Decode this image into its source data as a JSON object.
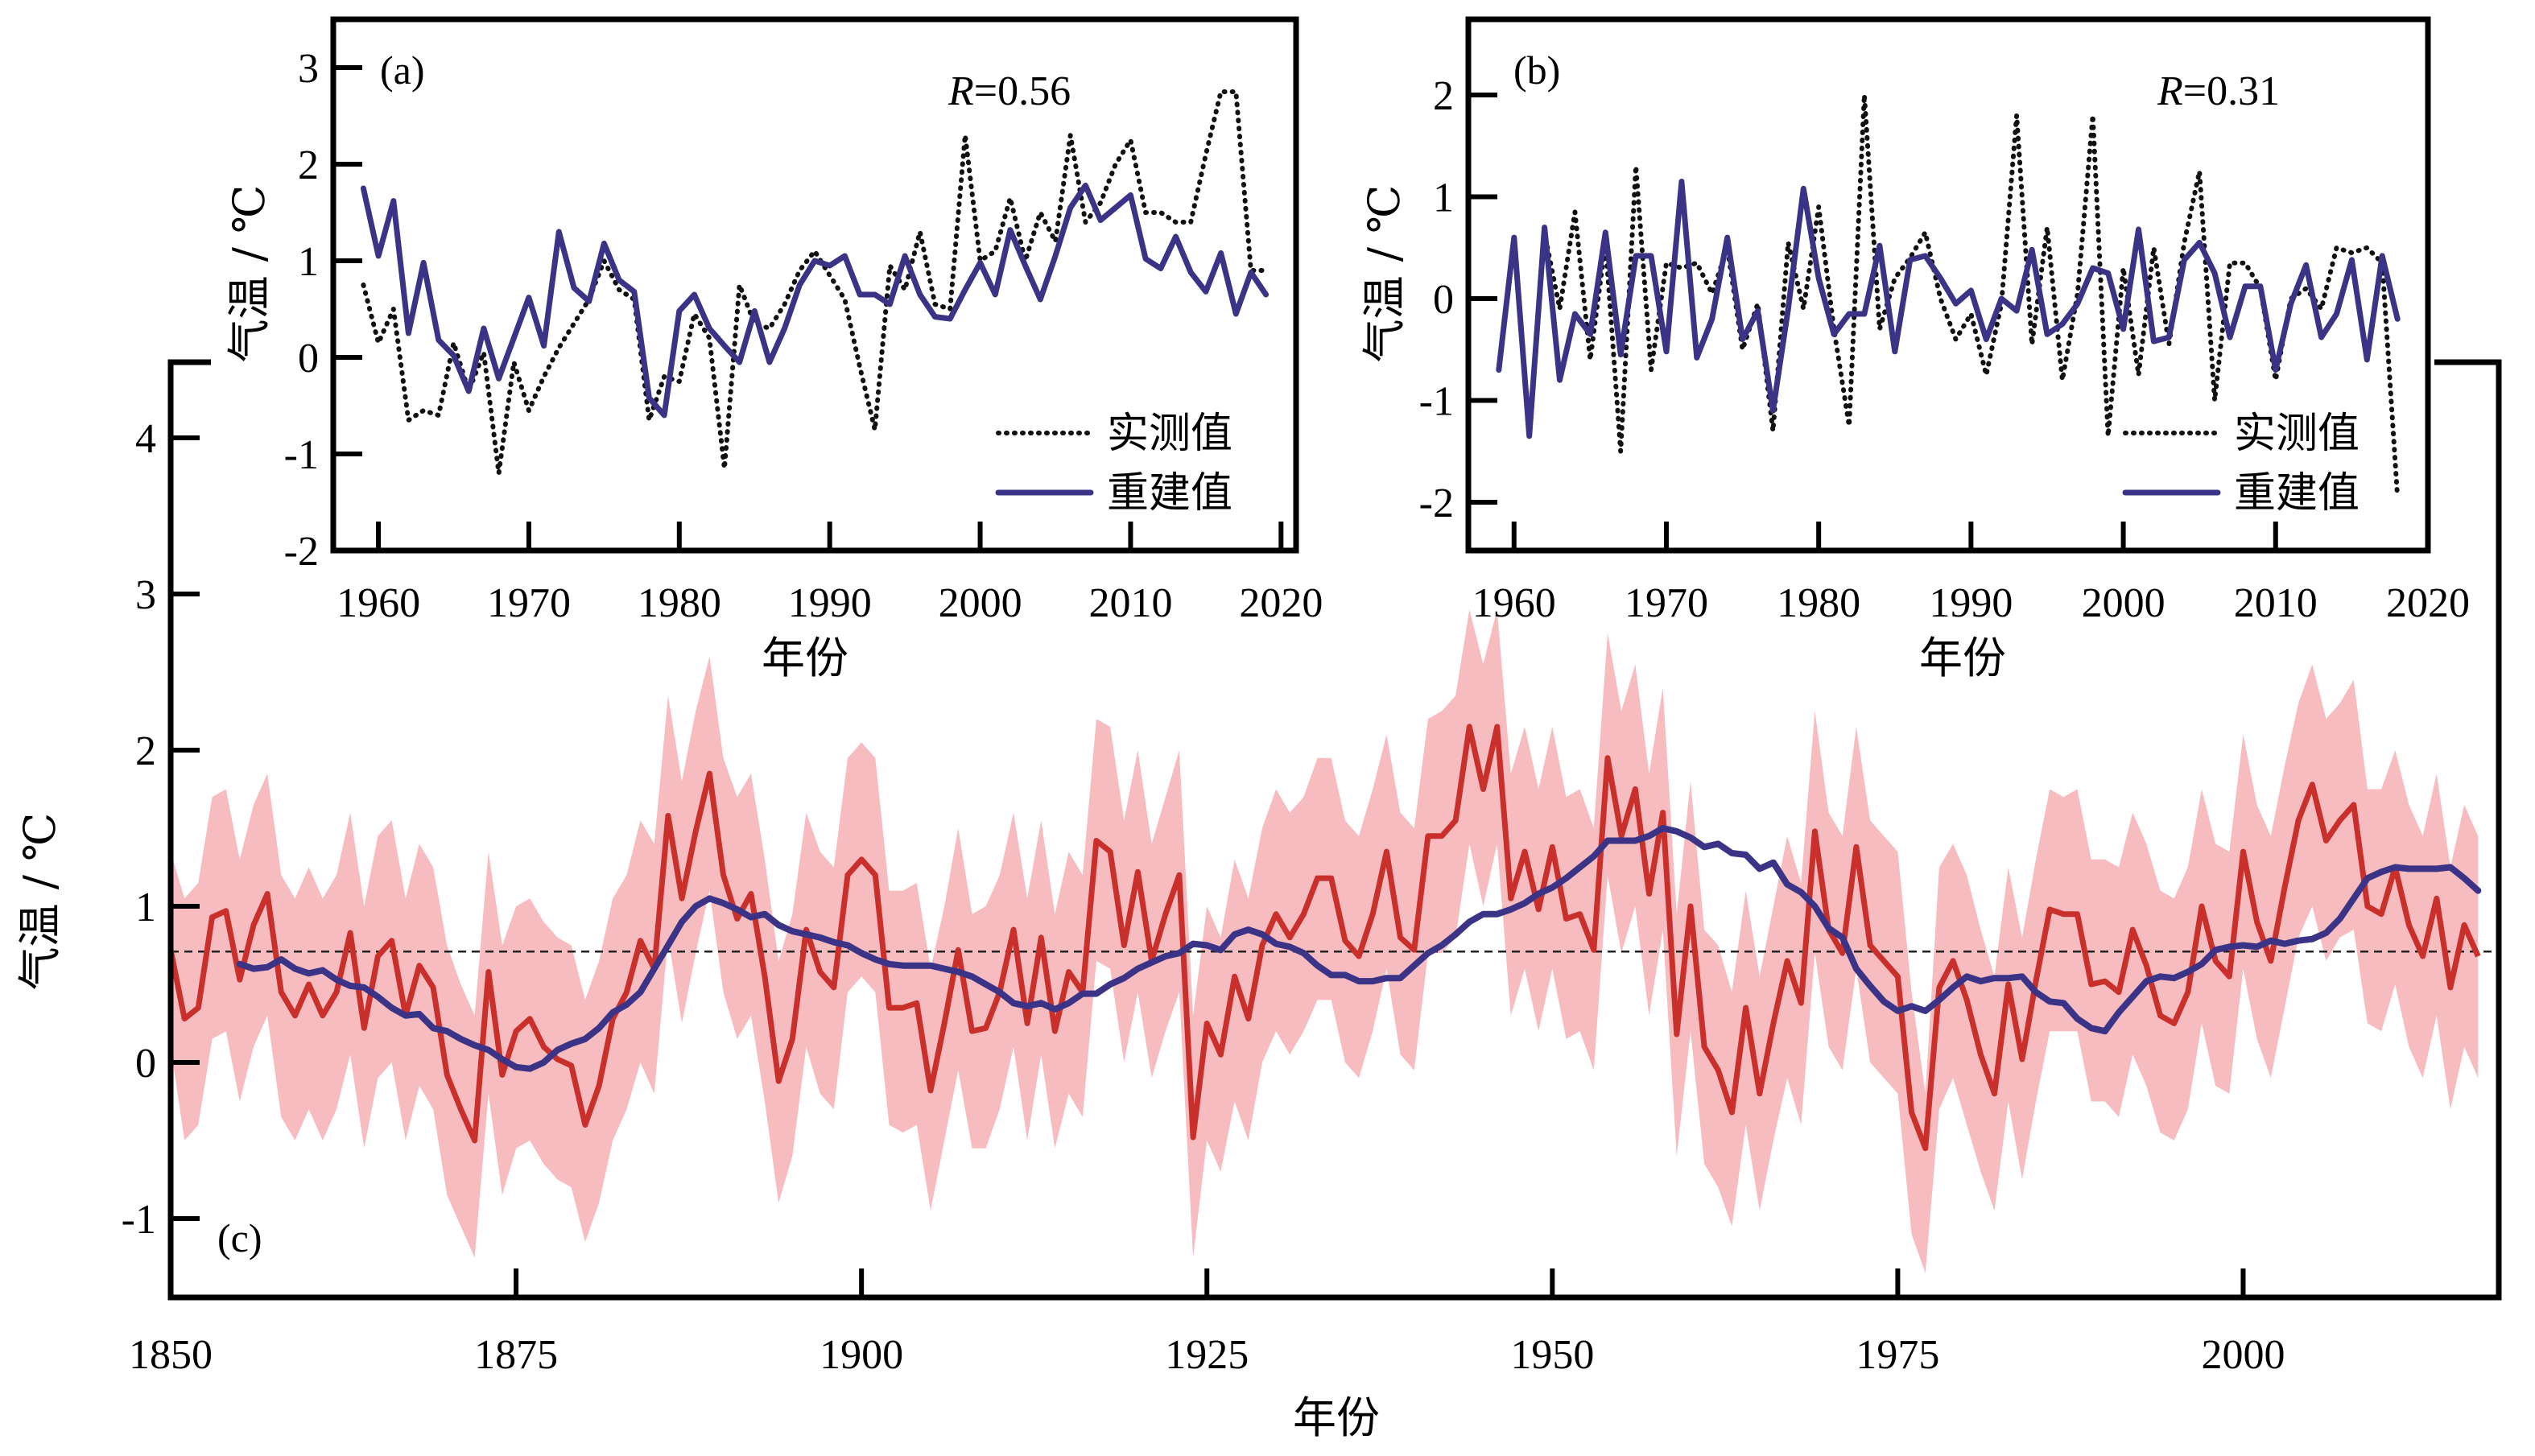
{
  "colors": {
    "observed": "#111111",
    "reconstructed_ab": "#3b3486",
    "reconstruction_c": "#c9302c",
    "uncertainty_band": "#f7bcc0",
    "smoothed_c": "#3b3486"
  },
  "chart_data": [
    {
      "id": "a",
      "type": "line",
      "panel_label": "(a)",
      "annotation": "R=0.56",
      "annotation_italic": "R",
      "annotation_rest": "=0.56",
      "xlabel": "年份",
      "ylabel": "气温 / ℃",
      "xlim": [
        1957,
        2021
      ],
      "ylim": [
        -2,
        3.5
      ],
      "xticks": [
        1960,
        1970,
        1980,
        1990,
        2000,
        2010,
        2020
      ],
      "yticks": [
        -2,
        -1,
        0,
        1,
        2,
        3
      ],
      "legend": {
        "position": "bottom-right",
        "entries": [
          "实测值",
          "重建值"
        ]
      },
      "x": [
        1959,
        1960,
        1961,
        1962,
        1963,
        1964,
        1965,
        1966,
        1967,
        1968,
        1969,
        1970,
        1971,
        1972,
        1973,
        1974,
        1975,
        1976,
        1977,
        1978,
        1979,
        1980,
        1981,
        1982,
        1983,
        1984,
        1985,
        1986,
        1987,
        1988,
        1989,
        1990,
        1991,
        1992,
        1993,
        1994,
        1995,
        1996,
        1997,
        1998,
        1999,
        2000,
        2001,
        2002,
        2003,
        2004,
        2005,
        2006,
        2007,
        2008,
        2009,
        2010,
        2011,
        2012,
        2013,
        2014,
        2015,
        2016,
        2017,
        2018,
        2019
      ],
      "series": [
        {
          "name": "实测值",
          "style": "dotted",
          "values": [
            0.75,
            0.15,
            0.5,
            -0.65,
            -0.55,
            -0.6,
            0.15,
            -0.35,
            0.05,
            -1.2,
            -0.05,
            -0.55,
            -0.2,
            0.1,
            0.35,
            0.6,
            1.0,
            0.7,
            0.6,
            -0.65,
            -0.2,
            -0.25,
            0.45,
            0.2,
            -1.15,
            0.75,
            0.35,
            0.3,
            0.55,
            0.9,
            1.1,
            0.85,
            0.6,
            -0.1,
            -0.75,
            0.95,
            0.7,
            1.3,
            0.55,
            0.5,
            2.3,
            1.0,
            1.1,
            1.65,
            1.0,
            1.5,
            1.2,
            2.3,
            1.4,
            1.6,
            2.0,
            2.25,
            1.5,
            1.5,
            1.4,
            1.4,
            2.1,
            2.75,
            2.75,
            0.9,
            0.9
          ]
        },
        {
          "name": "重建值",
          "style": "solid",
          "values": [
            1.75,
            1.05,
            1.62,
            0.25,
            0.98,
            0.18,
            0.02,
            -0.35,
            0.3,
            -0.22,
            0.2,
            0.62,
            0.12,
            1.3,
            0.72,
            0.58,
            1.18,
            0.8,
            0.68,
            -0.42,
            -0.6,
            0.48,
            0.65,
            0.3,
            0.12,
            -0.05,
            0.48,
            -0.05,
            0.3,
            0.75,
            1.0,
            0.95,
            1.05,
            0.65,
            0.65,
            0.55,
            1.05,
            0.65,
            0.42,
            0.4,
            0.7,
            0.98,
            0.65,
            1.32,
            0.95,
            0.6,
            1.05,
            1.55,
            1.78,
            1.42,
            1.55,
            1.68,
            1.02,
            0.92,
            1.25,
            0.88,
            0.68,
            1.08,
            0.45,
            0.88,
            0.65
          ]
        }
      ]
    },
    {
      "id": "b",
      "type": "line",
      "panel_label": "(b)",
      "annotation": "R=0.31",
      "annotation_italic": "R",
      "annotation_rest": "=0.31",
      "xlabel": "年份",
      "ylabel": "气温 / ℃",
      "xlim": [
        1957,
        2020
      ],
      "ylim": [
        -2.5,
        2.7
      ],
      "xticks": [
        1960,
        1970,
        1980,
        1990,
        2000,
        2010,
        2020
      ],
      "yticks": [
        -2,
        -1,
        0,
        1,
        2
      ],
      "legend": {
        "position": "bottom-right",
        "entries": [
          "实测值",
          "重建值"
        ]
      },
      "x": [
        1959,
        1960,
        1961,
        1962,
        1963,
        1964,
        1965,
        1966,
        1967,
        1968,
        1969,
        1970,
        1971,
        1972,
        1973,
        1974,
        1975,
        1976,
        1977,
        1978,
        1979,
        1980,
        1981,
        1982,
        1983,
        1984,
        1985,
        1986,
        1987,
        1988,
        1989,
        1990,
        1991,
        1992,
        1993,
        1994,
        1995,
        1996,
        1997,
        1998,
        1999,
        2000,
        2001,
        2002,
        2003,
        2004,
        2005,
        2006,
        2007,
        2008,
        2009,
        2010,
        2011,
        2012,
        2013,
        2014,
        2015,
        2016,
        2017,
        2018
      ],
      "series": [
        {
          "name": "实测值",
          "style": "dotted",
          "values": [
            -0.7,
            0.55,
            -1.3,
            0.65,
            -0.1,
            0.85,
            -0.6,
            0.55,
            -1.5,
            1.3,
            -0.7,
            0.35,
            0.3,
            0.35,
            0.05,
            0.5,
            -0.5,
            -0.05,
            -1.3,
            0.55,
            -0.1,
            0.9,
            -0.3,
            -1.25,
            2.0,
            -0.3,
            0.2,
            0.4,
            0.65,
            0.0,
            -0.4,
            -0.15,
            -0.75,
            -0.05,
            1.8,
            -0.45,
            0.7,
            -0.8,
            0.05,
            1.8,
            -1.35,
            0.3,
            -0.75,
            0.5,
            -0.45,
            0.55,
            1.25,
            -1.0,
            0.35,
            0.35,
            0.1,
            -0.8,
            0.0,
            0.1,
            -0.1,
            0.5,
            0.45,
            0.5,
            0.35,
            -1.95
          ]
        },
        {
          "name": "重建值",
          "style": "solid",
          "values": [
            -0.7,
            0.6,
            -1.35,
            0.7,
            -0.8,
            -0.15,
            -0.35,
            0.65,
            -0.55,
            0.42,
            0.42,
            -0.52,
            1.15,
            -0.58,
            -0.2,
            0.6,
            -0.4,
            -0.12,
            -1.1,
            -0.1,
            1.08,
            0.2,
            -0.35,
            -0.15,
            -0.15,
            0.52,
            -0.52,
            0.38,
            0.42,
            0.2,
            -0.05,
            0.08,
            -0.4,
            0.0,
            -0.12,
            0.48,
            -0.35,
            -0.25,
            -0.05,
            0.3,
            0.25,
            -0.3,
            0.68,
            -0.42,
            -0.38,
            0.38,
            0.55,
            0.25,
            -0.38,
            0.12,
            0.12,
            -0.7,
            -0.05,
            0.33,
            -0.38,
            -0.15,
            0.38,
            -0.6,
            0.42,
            -0.2
          ]
        }
      ]
    },
    {
      "id": "c",
      "type": "area",
      "panel_label": "(c)",
      "xlabel": "年份",
      "ylabel": "气温 / ℃",
      "xlim": [
        1850,
        2018.5
      ],
      "ylim": [
        -1.5,
        4.45
      ],
      "xticks": [
        1850,
        1875,
        1900,
        1925,
        1950,
        1975,
        2000
      ],
      "yticks": [
        -1,
        0,
        1,
        2,
        3,
        4
      ],
      "reference_line": 0.71,
      "x_start": 1850,
      "reconstruction": [
        0.72,
        0.28,
        0.35,
        0.93,
        0.97,
        0.53,
        0.88,
        1.08,
        0.45,
        0.3,
        0.5,
        0.3,
        0.45,
        0.83,
        0.22,
        0.68,
        0.78,
        0.3,
        0.62,
        0.48,
        -0.08,
        -0.3,
        -0.5,
        0.58,
        -0.08,
        0.2,
        0.28,
        0.1,
        0.02,
        -0.02,
        -0.4,
        -0.15,
        0.28,
        0.45,
        0.78,
        0.6,
        1.58,
        1.05,
        1.48,
        1.85,
        1.2,
        0.92,
        1.08,
        0.55,
        -0.12,
        0.15,
        0.85,
        0.58,
        0.48,
        1.2,
        1.3,
        1.2,
        0.35,
        0.35,
        0.38,
        -0.18,
        0.25,
        0.72,
        0.2,
        0.22,
        0.45,
        0.85,
        0.25,
        0.8,
        0.2,
        0.58,
        0.45,
        1.42,
        1.35,
        0.75,
        1.22,
        0.65,
        0.95,
        1.2,
        -0.48,
        0.25,
        0.05,
        0.55,
        0.28,
        0.75,
        0.95,
        0.8,
        0.95,
        1.18,
        1.18,
        0.78,
        0.68,
        0.95,
        1.35,
        0.8,
        0.72,
        1.45,
        1.45,
        1.55,
        2.15,
        1.75,
        2.15,
        1.05,
        1.35,
        0.98,
        1.38,
        0.92,
        0.95,
        0.72,
        1.95,
        1.45,
        1.75,
        1.08,
        1.6,
        0.18,
        1.0,
        0.1,
        -0.05,
        -0.32,
        0.35,
        -0.2,
        0.25,
        0.65,
        0.38,
        1.48,
        0.85,
        0.7,
        1.38,
        0.75,
        0.65,
        0.55,
        -0.32,
        -0.55,
        0.48,
        0.65,
        0.4,
        0.05,
        -0.2,
        0.5,
        0.02,
        0.52,
        0.98,
        0.95,
        0.95,
        0.5,
        0.52,
        0.45,
        0.85,
        0.62,
        0.3,
        0.25,
        0.45,
        1.0,
        0.65,
        0.55,
        1.35,
        0.9,
        0.65,
        1.12,
        1.55,
        1.78,
        1.42,
        1.55,
        1.65,
        1.0,
        0.95,
        1.25,
        0.88,
        0.68,
        1.05,
        0.48,
        0.88,
        0.68
      ],
      "band_upper": [
        1.35,
        1.05,
        1.15,
        1.7,
        1.75,
        1.3,
        1.65,
        1.85,
        1.2,
        1.05,
        1.25,
        1.05,
        1.2,
        1.6,
        1.0,
        1.45,
        1.55,
        1.05,
        1.4,
        1.25,
        0.75,
        0.5,
        0.3,
        1.35,
        0.75,
        1.0,
        1.05,
        0.9,
        0.8,
        0.75,
        0.4,
        0.65,
        1.05,
        1.2,
        1.55,
        1.4,
        2.35,
        1.8,
        2.25,
        2.6,
        1.95,
        1.7,
        1.85,
        1.3,
        0.65,
        0.95,
        1.6,
        1.35,
        1.25,
        1.95,
        2.05,
        1.95,
        1.1,
        1.1,
        1.15,
        0.6,
        1.0,
        1.5,
        0.95,
        1.0,
        1.2,
        1.6,
        1.05,
        1.55,
        0.95,
        1.35,
        1.2,
        2.2,
        2.15,
        1.55,
        2.0,
        1.4,
        1.7,
        2.0,
        0.3,
        1.0,
        0.8,
        1.3,
        1.05,
        1.5,
        1.75,
        1.6,
        1.7,
        1.95,
        1.95,
        1.55,
        1.45,
        1.75,
        2.1,
        1.6,
        1.5,
        2.2,
        2.25,
        2.35,
        2.9,
        2.55,
        2.9,
        1.85,
        2.15,
        1.75,
        2.15,
        1.7,
        1.75,
        1.5,
        2.75,
        2.25,
        2.55,
        1.85,
        2.4,
        0.95,
        1.8,
        0.85,
        0.75,
        0.45,
        1.1,
        0.55,
        1.0,
        1.45,
        1.15,
        2.25,
        1.6,
        1.45,
        2.15,
        1.55,
        1.45,
        1.35,
        0.45,
        -0.2,
        1.25,
        1.4,
        1.2,
        0.85,
        0.55,
        1.25,
        0.8,
        1.3,
        1.75,
        1.7,
        1.75,
        1.3,
        1.3,
        1.25,
        1.6,
        1.4,
        1.1,
        1.05,
        1.25,
        1.75,
        1.4,
        1.35,
        2.1,
        1.65,
        1.45,
        1.9,
        2.3,
        2.55,
        2.2,
        2.3,
        2.45,
        1.75,
        1.75,
        2.0,
        1.65,
        1.45,
        1.85,
        1.25,
        1.65,
        1.45
      ],
      "band_lower": [
        0.1,
        -0.5,
        -0.4,
        0.15,
        0.2,
        -0.25,
        0.1,
        0.3,
        -0.35,
        -0.5,
        -0.3,
        -0.5,
        -0.3,
        0.05,
        -0.55,
        -0.1,
        0.0,
        -0.5,
        -0.15,
        -0.3,
        -0.85,
        -1.05,
        -1.25,
        -0.2,
        -0.85,
        -0.55,
        -0.5,
        -0.65,
        -0.75,
        -0.8,
        -1.15,
        -0.9,
        -0.5,
        -0.3,
        0.0,
        -0.2,
        0.8,
        0.25,
        0.7,
        1.1,
        0.45,
        0.15,
        0.3,
        -0.25,
        -0.9,
        -0.6,
        0.1,
        -0.2,
        -0.3,
        0.45,
        0.55,
        0.45,
        -0.4,
        -0.45,
        -0.4,
        -0.95,
        -0.5,
        -0.05,
        -0.55,
        -0.55,
        -0.3,
        0.1,
        -0.5,
        0.05,
        -0.55,
        -0.2,
        -0.35,
        0.65,
        0.6,
        0.0,
        0.45,
        -0.1,
        0.2,
        0.45,
        -1.25,
        -0.5,
        -0.7,
        -0.25,
        -0.5,
        0.0,
        0.2,
        0.05,
        0.2,
        0.4,
        0.4,
        0.0,
        -0.1,
        0.2,
        0.6,
        0.05,
        -0.05,
        0.7,
        0.7,
        0.8,
        1.4,
        1.0,
        1.4,
        0.3,
        0.6,
        0.2,
        0.6,
        0.15,
        0.2,
        -0.05,
        1.2,
        0.7,
        1.0,
        0.3,
        0.85,
        -0.6,
        0.2,
        -0.65,
        -0.8,
        -1.05,
        -0.4,
        -0.95,
        -0.5,
        -0.1,
        -0.4,
        0.7,
        0.1,
        -0.05,
        0.6,
        0.0,
        -0.1,
        -0.2,
        -1.1,
        -1.35,
        -0.3,
        -0.1,
        -0.4,
        -0.7,
        -0.95,
        -0.25,
        -0.75,
        -0.25,
        0.2,
        0.2,
        0.2,
        -0.25,
        -0.25,
        -0.35,
        0.05,
        -0.15,
        -0.45,
        -0.5,
        -0.3,
        0.25,
        -0.15,
        -0.2,
        0.6,
        0.15,
        -0.1,
        0.35,
        0.8,
        1.0,
        0.65,
        0.8,
        0.85,
        0.25,
        0.2,
        0.5,
        0.1,
        -0.1,
        0.3,
        -0.3,
        0.1,
        -0.1
      ],
      "smoothed_start": 1855,
      "smoothed": [
        0.63,
        0.6,
        0.61,
        0.66,
        0.6,
        0.57,
        0.59,
        0.53,
        0.49,
        0.48,
        0.42,
        0.35,
        0.3,
        0.31,
        0.22,
        0.2,
        0.15,
        0.11,
        0.08,
        0.02,
        -0.03,
        -0.04,
        0.0,
        0.08,
        0.12,
        0.15,
        0.22,
        0.32,
        0.37,
        0.45,
        0.6,
        0.75,
        0.9,
        1.0,
        1.05,
        1.02,
        0.98,
        0.93,
        0.95,
        0.88,
        0.84,
        0.82,
        0.8,
        0.77,
        0.75,
        0.7,
        0.66,
        0.63,
        0.62,
        0.62,
        0.62,
        0.6,
        0.58,
        0.55,
        0.5,
        0.45,
        0.38,
        0.36,
        0.38,
        0.34,
        0.38,
        0.44,
        0.44,
        0.5,
        0.54,
        0.6,
        0.64,
        0.68,
        0.7,
        0.76,
        0.75,
        0.72,
        0.82,
        0.85,
        0.82,
        0.76,
        0.74,
        0.7,
        0.62,
        0.56,
        0.56,
        0.52,
        0.52,
        0.54,
        0.54,
        0.62,
        0.7,
        0.75,
        0.82,
        0.9,
        0.95,
        0.95,
        0.98,
        1.02,
        1.08,
        1.12,
        1.18,
        1.25,
        1.32,
        1.42,
        1.42,
        1.42,
        1.45,
        1.5,
        1.48,
        1.44,
        1.38,
        1.4,
        1.34,
        1.33,
        1.24,
        1.28,
        1.14,
        1.09,
        1.0,
        0.86,
        0.8,
        0.6,
        0.49,
        0.39,
        0.33,
        0.36,
        0.33,
        0.4,
        0.48,
        0.55,
        0.52,
        0.54,
        0.54,
        0.55,
        0.45,
        0.39,
        0.38,
        0.28,
        0.22,
        0.2,
        0.32,
        0.42,
        0.52,
        0.55,
        0.54,
        0.58,
        0.63,
        0.72,
        0.74,
        0.75,
        0.74,
        0.78,
        0.76,
        0.78,
        0.79,
        0.83,
        0.92,
        1.05,
        1.18,
        1.22,
        1.25,
        1.24,
        1.24,
        1.24,
        1.25,
        1.18,
        1.1
      ]
    }
  ]
}
